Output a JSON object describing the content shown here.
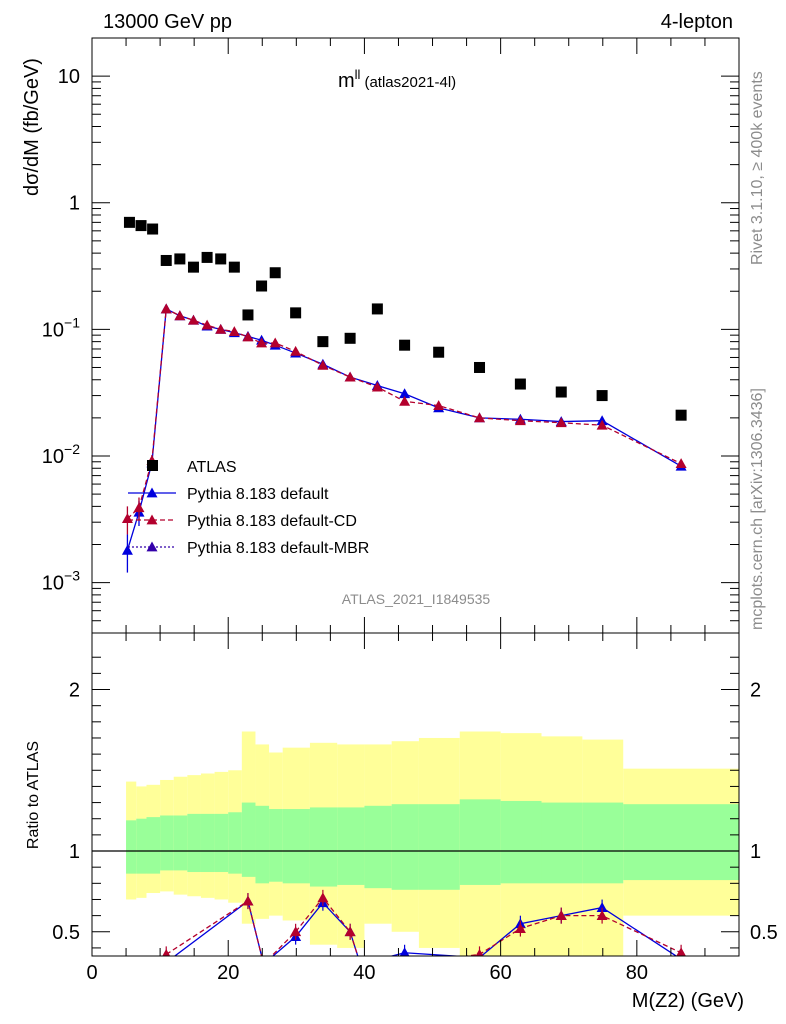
{
  "header": {
    "energy_label": "13000 GeV pp",
    "process_label": "4-lepton",
    "rivet_label": "Rivet 3.1.10, ≥ 400k events",
    "mcplots_label": "mcplots.cern.ch [arXiv:1306.3436]",
    "observable_main": "m",
    "observable_sup": "ll",
    "observable_sub": "(atlas2021-4l)",
    "analysis_id": "ATLAS_2021_I1849535"
  },
  "colors": {
    "data": "#000000",
    "default": "#0000dd",
    "cd": "#b3002d",
    "mbr": "#3300aa",
    "band_inner": "#99ff99",
    "band_outer": "#ffff99"
  },
  "chart_data": [
    {
      "type": "scatter",
      "panel": "main",
      "xlabel": "M(Z2) (GeV)",
      "ylabel": "dσ/dM (fb/GeV)",
      "yscale": "log",
      "xlim": [
        0,
        95
      ],
      "ylim": [
        0.0004,
        20
      ],
      "y_ticks": [
        {
          "value": 10,
          "label": "10"
        },
        {
          "value": 1,
          "label": "1"
        },
        {
          "value": 0.1,
          "label": "10",
          "exp": "−1"
        },
        {
          "value": 0.01,
          "label": "10",
          "exp": "−2"
        },
        {
          "value": 0.001,
          "label": "10",
          "exp": "−3"
        }
      ],
      "legend": [
        {
          "key": "data",
          "label": "ATLAS"
        },
        {
          "key": "default",
          "label": "Pythia 8.183 default"
        },
        {
          "key": "cd",
          "label": "Pythia 8.183 default-CD"
        },
        {
          "key": "mbr",
          "label": "Pythia 8.183 default-MBR"
        }
      ],
      "bins": [
        {
          "lo": 5,
          "hi": 6.5
        },
        {
          "lo": 6.5,
          "hi": 8
        },
        {
          "lo": 8,
          "hi": 10
        },
        {
          "lo": 10,
          "hi": 12
        },
        {
          "lo": 12,
          "hi": 14
        },
        {
          "lo": 14,
          "hi": 16
        },
        {
          "lo": 16,
          "hi": 18
        },
        {
          "lo": 18,
          "hi": 20
        },
        {
          "lo": 20,
          "hi": 22
        },
        {
          "lo": 22,
          "hi": 24
        },
        {
          "lo": 24,
          "hi": 26
        },
        {
          "lo": 26,
          "hi": 28
        },
        {
          "lo": 28,
          "hi": 32
        },
        {
          "lo": 32,
          "hi": 36
        },
        {
          "lo": 36,
          "hi": 40
        },
        {
          "lo": 40,
          "hi": 44
        },
        {
          "lo": 44,
          "hi": 48
        },
        {
          "lo": 48,
          "hi": 54
        },
        {
          "lo": 54,
          "hi": 60
        },
        {
          "lo": 60,
          "hi": 66
        },
        {
          "lo": 66,
          "hi": 72
        },
        {
          "lo": 72,
          "hi": 78
        },
        {
          "lo": 78,
          "hi": 95
        }
      ],
      "series": [
        {
          "name": "ATLAS",
          "key": "data",
          "x": [
            5.5,
            7.2,
            8.9,
            10.9,
            12.9,
            14.9,
            16.9,
            18.9,
            20.9,
            22.9,
            24.9,
            26.9,
            29.9,
            33.9,
            37.9,
            41.9,
            45.9,
            50.9,
            56.9,
            62.9,
            68.9,
            74.9,
            86.5
          ],
          "values": [
            0.7,
            0.66,
            0.62,
            0.35,
            0.36,
            0.31,
            0.37,
            0.36,
            0.31,
            0.13,
            0.22,
            0.28,
            0.135,
            0.08,
            0.085,
            0.145,
            0.075,
            0.066,
            0.05,
            0.037,
            0.032,
            0.03,
            0.021
          ]
        },
        {
          "name": "Pythia 8.183 default",
          "key": "default",
          "x": [
            5.2,
            6.9,
            8.8,
            10.9,
            12.9,
            14.9,
            16.9,
            18.9,
            20.9,
            22.9,
            24.9,
            26.9,
            29.9,
            33.9,
            37.9,
            41.9,
            45.9,
            50.9,
            56.9,
            62.9,
            68.9,
            74.9,
            86.5
          ],
          "values": [
            0.0018,
            0.0036,
            0.0088,
            0.145,
            0.128,
            0.118,
            0.106,
            0.1,
            0.094,
            0.088,
            0.082,
            0.075,
            0.065,
            0.053,
            0.042,
            0.036,
            0.031,
            0.024,
            0.02,
            0.0195,
            0.0187,
            0.019,
            0.0083
          ],
          "err": [
            0.0006,
            0.0008,
            0.001,
            0,
            0,
            0,
            0,
            0,
            0,
            0,
            0,
            0,
            0,
            0,
            0,
            0,
            0,
            0,
            0,
            0,
            0,
            0,
            0
          ]
        },
        {
          "name": "Pythia 8.183 default-CD",
          "key": "cd",
          "x": [
            5.2,
            6.9,
            8.8,
            10.9,
            12.9,
            14.9,
            16.9,
            18.9,
            20.9,
            22.9,
            24.9,
            26.9,
            29.9,
            33.9,
            37.9,
            41.9,
            45.9,
            50.9,
            56.9,
            62.9,
            68.9,
            74.9,
            86.5
          ],
          "values": [
            0.0032,
            0.0039,
            0.0092,
            0.145,
            0.128,
            0.118,
            0.108,
            0.1,
            0.096,
            0.087,
            0.078,
            0.078,
            0.067,
            0.052,
            0.042,
            0.035,
            0.027,
            0.025,
            0.02,
            0.019,
            0.0183,
            0.0175,
            0.0087
          ],
          "err": [
            0.0008,
            0.0008,
            0.001,
            0,
            0,
            0,
            0,
            0,
            0,
            0,
            0,
            0,
            0,
            0,
            0,
            0,
            0,
            0,
            0,
            0,
            0,
            0,
            0
          ]
        }
      ]
    },
    {
      "type": "line",
      "panel": "ratio",
      "xlabel": "M(Z2) (GeV)",
      "ylabel": "Ratio to ATLAS",
      "xlim": [
        0,
        95
      ],
      "ylim": [
        0.35,
        2.35
      ],
      "x_ticks": [
        0,
        20,
        40,
        60,
        80
      ],
      "y_ticks": [
        0.5,
        1,
        2
      ],
      "bands": {
        "inner_lo": [
          0.86,
          0.86,
          0.86,
          0.88,
          0.88,
          0.87,
          0.87,
          0.87,
          0.86,
          0.84,
          0.8,
          0.81,
          0.8,
          0.78,
          0.79,
          0.77,
          0.76,
          0.76,
          0.79,
          0.8,
          0.8,
          0.8,
          0.82
        ],
        "inner_hi": [
          1.19,
          1.2,
          1.21,
          1.22,
          1.22,
          1.23,
          1.23,
          1.23,
          1.24,
          1.3,
          1.28,
          1.26,
          1.26,
          1.27,
          1.27,
          1.28,
          1.29,
          1.29,
          1.32,
          1.31,
          1.3,
          1.3,
          1.29
        ],
        "outer_lo": [
          0.7,
          0.71,
          0.74,
          0.75,
          0.73,
          0.72,
          0.71,
          0.7,
          0.68,
          0.55,
          0.58,
          0.6,
          0.57,
          0.42,
          0.4,
          0.55,
          0.5,
          0.4,
          0.35,
          0.35,
          0.35,
          0.35,
          0.6
        ],
        "outer_hi": [
          1.43,
          1.4,
          1.41,
          1.44,
          1.46,
          1.47,
          1.48,
          1.49,
          1.5,
          1.74,
          1.66,
          1.61,
          1.64,
          1.67,
          1.66,
          1.66,
          1.68,
          1.7,
          1.74,
          1.73,
          1.71,
          1.69,
          1.51
        ]
      },
      "series": [
        {
          "name": "Pythia 8.183 default",
          "key": "default",
          "x": [
            10.9,
            22.9,
            25.2,
            29.9,
            33.9,
            37.9,
            39.4,
            45.9,
            56.9,
            62.9,
            68.9,
            74.9,
            86.5
          ],
          "values": [
            0.31,
            0.69,
            0.3,
            0.47,
            0.68,
            0.5,
            0.3,
            0.37,
            0.34,
            0.55,
            0.6,
            0.65,
            0.33
          ]
        },
        {
          "name": "Pythia 8.183 default-CD",
          "key": "cd",
          "x": [
            10.9,
            22.9,
            25.2,
            29.9,
            33.9,
            37.9,
            39.4,
            45.9,
            56.9,
            62.9,
            68.9,
            74.9,
            86.5
          ],
          "values": [
            0.36,
            0.69,
            0.3,
            0.5,
            0.71,
            0.5,
            0.3,
            0.3,
            0.36,
            0.52,
            0.6,
            0.6,
            0.37
          ]
        }
      ]
    }
  ]
}
